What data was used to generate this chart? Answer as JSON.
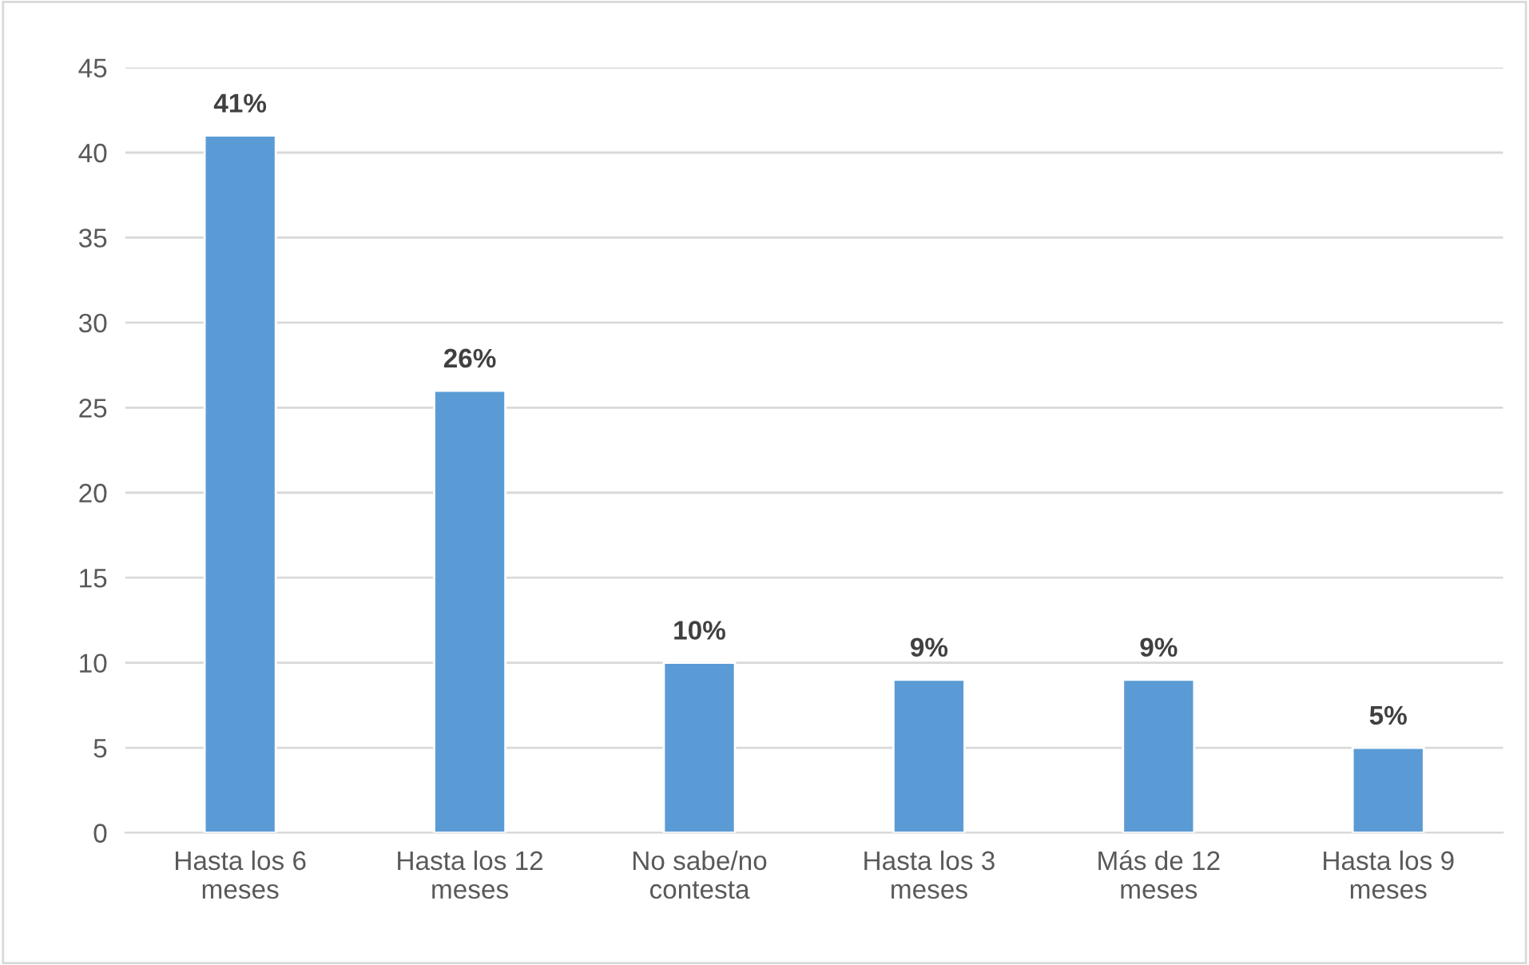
{
  "chart_data": {
    "type": "bar",
    "categories": [
      "Hasta los 6 meses",
      "Hasta los 12 meses",
      "No sabe/no contesta",
      "Hasta los 3 meses",
      "Más de 12 meses",
      "Hasta los 9 meses"
    ],
    "values": [
      41,
      26,
      10,
      9,
      9,
      5
    ],
    "value_labels": [
      "41%",
      "26%",
      "10%",
      "9%",
      "9%",
      "5%"
    ],
    "color": "#5b9bd5",
    "ylim": [
      0,
      45
    ],
    "yticks": [
      0,
      5,
      10,
      15,
      20,
      25,
      30,
      35,
      40,
      45
    ],
    "grid": "y",
    "legend": false
  }
}
